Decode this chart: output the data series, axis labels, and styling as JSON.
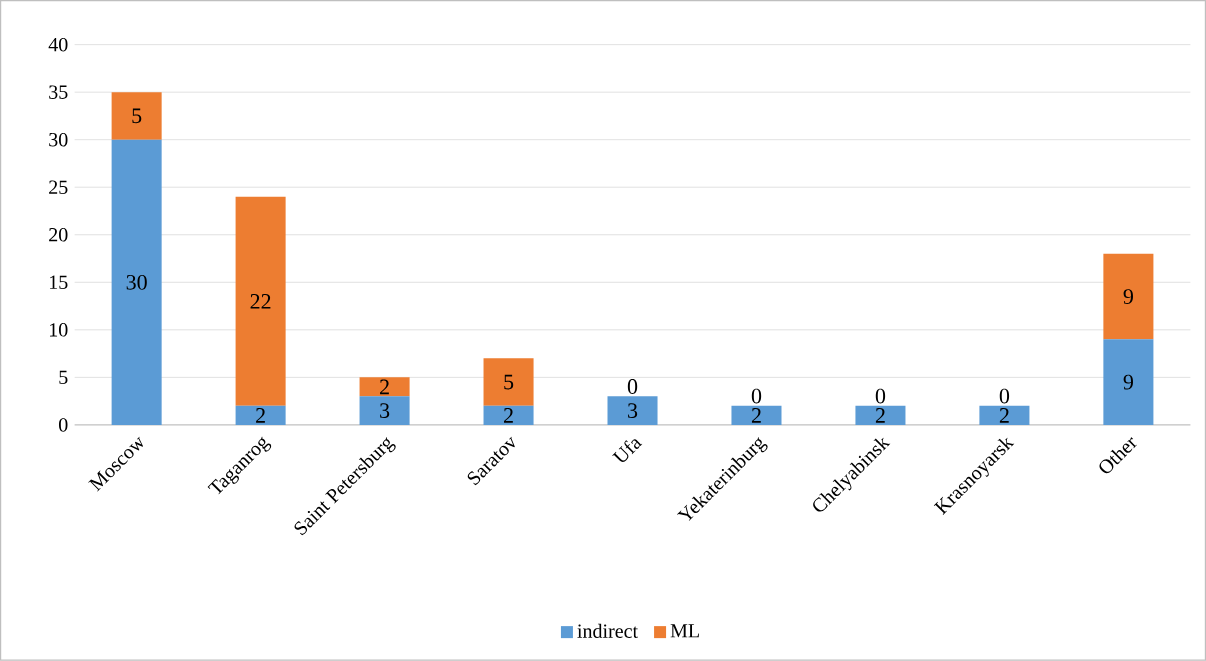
{
  "chart_data": {
    "type": "bar",
    "stacked": true,
    "categories": [
      "Moscow",
      "Taganrog",
      "Saint Petersburg",
      "Saratov",
      "Ufa",
      "Yekaterinburg",
      "Chelyabinsk",
      "Krasnoyarsk",
      "Other"
    ],
    "series": [
      {
        "name": "indirect",
        "color": "#5b9bd5",
        "values": [
          30,
          2,
          3,
          2,
          3,
          2,
          2,
          2,
          9
        ]
      },
      {
        "name": "ML",
        "color": "#ed7d31",
        "values": [
          5,
          22,
          2,
          5,
          0,
          0,
          0,
          0,
          9
        ]
      }
    ],
    "ylim": [
      0,
      40
    ],
    "yticks": [
      0,
      5,
      10,
      15,
      20,
      25,
      30,
      35,
      40
    ],
    "grid": "y",
    "legend": "bottom",
    "data_labels": true
  }
}
